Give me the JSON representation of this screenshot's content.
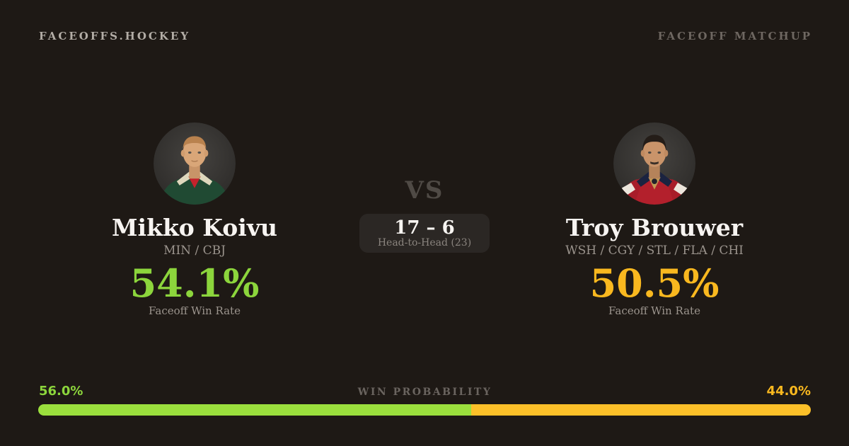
{
  "header": {
    "brand": "FACEOFFS.HOCKEY",
    "matchup_label": "FACEOFF MATCHUP"
  },
  "players": {
    "left": {
      "name": "Mikko Koivu",
      "teams": "MIN / CBJ",
      "win_rate": "54.1%",
      "win_rate_label": "Faceoff Win Rate",
      "accent_color": "#8cd53c",
      "avatar_icon": "player-headshot-green-jersey"
    },
    "right": {
      "name": "Troy Brouwer",
      "teams": "WSH / CGY / STL / FLA / CHI",
      "win_rate": "50.5%",
      "win_rate_label": "Faceoff Win Rate",
      "accent_color": "#f9b81f",
      "avatar_icon": "player-headshot-red-jersey"
    }
  },
  "matchup": {
    "vs_label": "VS",
    "head_to_head_score": "17 – 6",
    "head_to_head_label": "Head-to-Head (23)"
  },
  "win_probability": {
    "label": "WIN PROBABILITY",
    "left_value": "56.0%",
    "right_value": "44.0%",
    "left_percent": 56,
    "right_percent": 44,
    "left_color": "#9bdf3d",
    "right_color": "#fcc029",
    "left_text_color": "#8cd53c",
    "right_text_color": "#f9b81f"
  },
  "colors": {
    "background": "#1e1915",
    "card_box": "#2b2724",
    "primary_text": "#f7f4f1",
    "muted_text": "#9b948d"
  }
}
